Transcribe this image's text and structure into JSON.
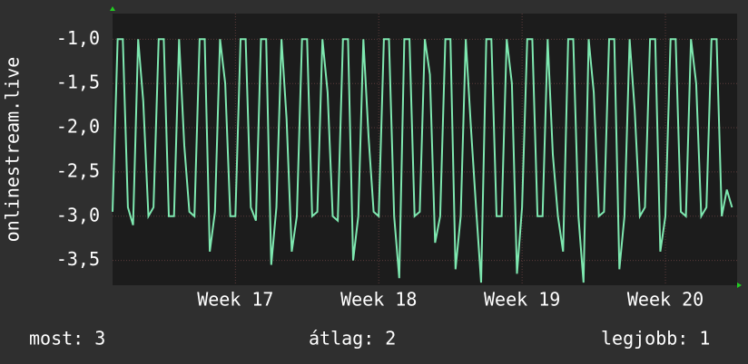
{
  "chart_data": {
    "type": "line",
    "ylabel": "onlinestream.live",
    "color": "#7ee8b0",
    "x": [
      0,
      0.25,
      0.5,
      0.75,
      1,
      1.25,
      1.5,
      1.75,
      2,
      2.25,
      2.5,
      2.75,
      3,
      3.25,
      3.5,
      3.75,
      4,
      4.25,
      4.5,
      4.75,
      5,
      5.25,
      5.5,
      5.75,
      6,
      6.25,
      6.5,
      6.75,
      7,
      7.25,
      7.5,
      7.75,
      8,
      8.25,
      8.5,
      8.75,
      9,
      9.25,
      9.5,
      9.75,
      10,
      10.25,
      10.5,
      10.75,
      11,
      11.25,
      11.5,
      11.75,
      12,
      12.25,
      12.5,
      12.75,
      13,
      13.25,
      13.5,
      13.75,
      14,
      14.25,
      14.5,
      14.75,
      15,
      15.25,
      15.5,
      15.75,
      16,
      16.25,
      16.5,
      16.75,
      17,
      17.25,
      17.5,
      17.75,
      18,
      18.25,
      18.5,
      18.75,
      19,
      19.25,
      19.5,
      19.75,
      20,
      20.25,
      20.5,
      20.75,
      21,
      21.25,
      21.5,
      21.75,
      22,
      22.25,
      22.5,
      22.75,
      23,
      23.25,
      23.5,
      23.75,
      24,
      24.25,
      24.5,
      24.75,
      25,
      25.25,
      25.5,
      25.75,
      26,
      26.25,
      26.5,
      26.75,
      27,
      27.25,
      27.5,
      27.75,
      28,
      28.25,
      28.5,
      28.75,
      29,
      29.25,
      29.5,
      29.75,
      30,
      30.25
    ],
    "values": [
      -2.95,
      -1,
      -1,
      -2.9,
      -3.1,
      -1,
      -1.7,
      -3,
      -2.9,
      -1,
      -1,
      -3,
      -3,
      -1,
      -2.2,
      -2.95,
      -3,
      -1,
      -1,
      -3.4,
      -2.95,
      -1,
      -1.5,
      -3,
      -3,
      -1,
      -1,
      -2.9,
      -3.05,
      -1,
      -1,
      -3.55,
      -2.9,
      -1,
      -1.9,
      -3.4,
      -3,
      -1,
      -1,
      -3,
      -2.95,
      -1,
      -1.6,
      -3,
      -3.05,
      -1,
      -1,
      -3.5,
      -3,
      -1,
      -2.1,
      -2.95,
      -3,
      -1,
      -1,
      -3,
      -3.7,
      -1,
      -1,
      -3,
      -2.95,
      -1,
      -1.4,
      -3.3,
      -3,
      -1,
      -1,
      -3.6,
      -3,
      -1,
      -2,
      -2.9,
      -3.75,
      -1,
      -1,
      -3,
      -3,
      -1,
      -1.5,
      -3.65,
      -2.9,
      -1,
      -1,
      -3,
      -3,
      -1,
      -2.3,
      -3,
      -3.4,
      -1,
      -1,
      -3,
      -3.75,
      -1,
      -1.6,
      -3,
      -2.95,
      -1,
      -1,
      -3.6,
      -3,
      -1,
      -1.8,
      -3,
      -2.9,
      -1,
      -1,
      -3.4,
      -3,
      -1,
      -1,
      -2.95,
      -3,
      -1,
      -1.5,
      -3,
      -2.9,
      -1,
      -1,
      -3,
      -2.7,
      -2.9
    ],
    "xlim": [
      0,
      30.5
    ],
    "xticks": [
      {
        "value": 6,
        "label": "Week 17"
      },
      {
        "value": 13,
        "label": "Week 18"
      },
      {
        "value": 20,
        "label": "Week 19"
      },
      {
        "value": 27,
        "label": "Week 20"
      }
    ],
    "ylim": [
      -3.78,
      -0.71
    ],
    "yticks": [
      {
        "value": -1,
        "label": "-1,0"
      },
      {
        "value": -1.5,
        "label": "-1,5"
      },
      {
        "value": -2,
        "label": "-2,0"
      },
      {
        "value": -2.5,
        "label": "-2,5"
      },
      {
        "value": -3,
        "label": "-3,0"
      },
      {
        "value": -3.5,
        "label": "-3,5"
      }
    ],
    "grid": true,
    "footer": [
      "most: 3",
      "átlag: 2",
      "legjobb: 1"
    ]
  }
}
